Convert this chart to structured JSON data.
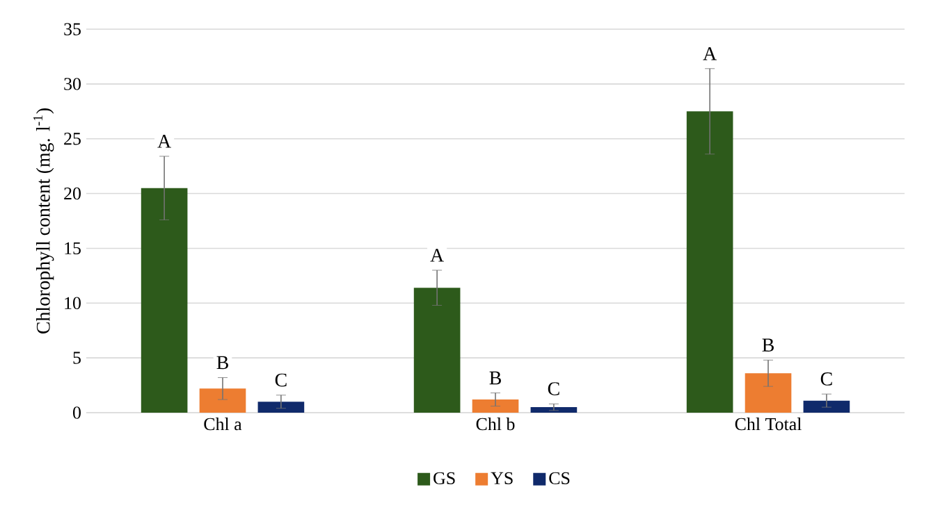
{
  "chart_data": {
    "type": "bar",
    "ylabel": "Chlorophyll content (mg. l$^{-1}$)",
    "categories": [
      "Chl a",
      "Chl b",
      "Chl Total"
    ],
    "series": [
      {
        "name": "GS",
        "color": "#2d5a1b",
        "values": [
          20.5,
          11.4,
          27.5
        ],
        "errors": [
          2.9,
          1.6,
          3.9
        ],
        "value_labels": [
          "A",
          "A",
          "A"
        ]
      },
      {
        "name": "YS",
        "color": "#ed7d31",
        "values": [
          2.2,
          1.2,
          3.6
        ],
        "errors": [
          1.0,
          0.6,
          1.2
        ],
        "value_labels": [
          "B",
          "B",
          "B"
        ]
      },
      {
        "name": "CS",
        "color": "#102a6b",
        "values": [
          1.0,
          0.5,
          1.1
        ],
        "errors": [
          0.6,
          0.3,
          0.6
        ],
        "value_labels": [
          "C",
          "C",
          "C"
        ]
      }
    ],
    "ylim": [
      0,
      35
    ],
    "yticks": [
      0,
      5,
      10,
      15,
      20,
      25,
      30,
      35
    ],
    "grid": "y",
    "legend": "bottom"
  }
}
